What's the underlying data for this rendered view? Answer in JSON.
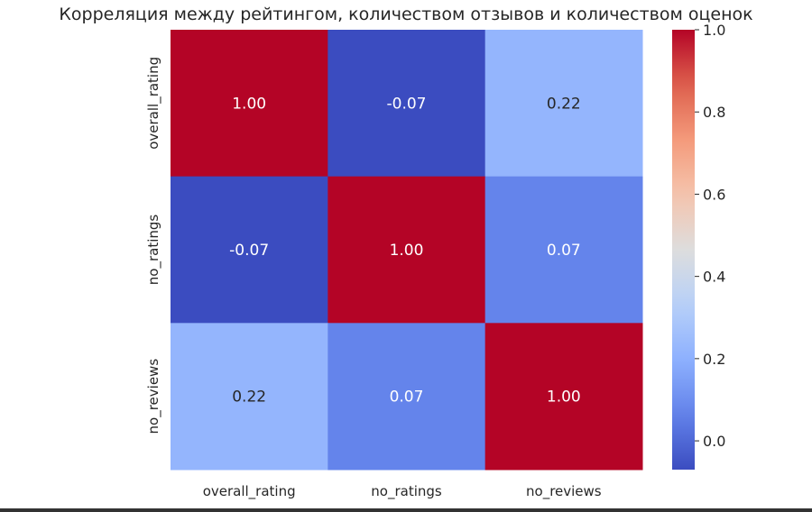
{
  "chart_data": {
    "type": "heatmap",
    "title": "Корреляция между рейтингом, количеством отзывов и количеством оценок",
    "x_labels": [
      "overall_rating",
      "no_ratings",
      "no_reviews"
    ],
    "y_labels": [
      "overall_rating",
      "no_ratings",
      "no_reviews"
    ],
    "values": [
      [
        1.0,
        -0.07,
        0.22
      ],
      [
        -0.07,
        1.0,
        0.07
      ],
      [
        0.22,
        0.07,
        1.0
      ]
    ],
    "annotations": [
      [
        "1.00",
        "-0.07",
        "0.22"
      ],
      [
        "-0.07",
        "1.00",
        "0.07"
      ],
      [
        "0.22",
        "0.07",
        "1.00"
      ]
    ],
    "colormap": "coolwarm",
    "vmin": -0.07,
    "vmax": 1.0,
    "colorbar_ticks": [
      "0.0",
      "0.2",
      "0.4",
      "0.6",
      "0.8",
      "1.0"
    ],
    "colorbar_tick_values": [
      0.0,
      0.2,
      0.4,
      0.6,
      0.8,
      1.0
    ]
  }
}
